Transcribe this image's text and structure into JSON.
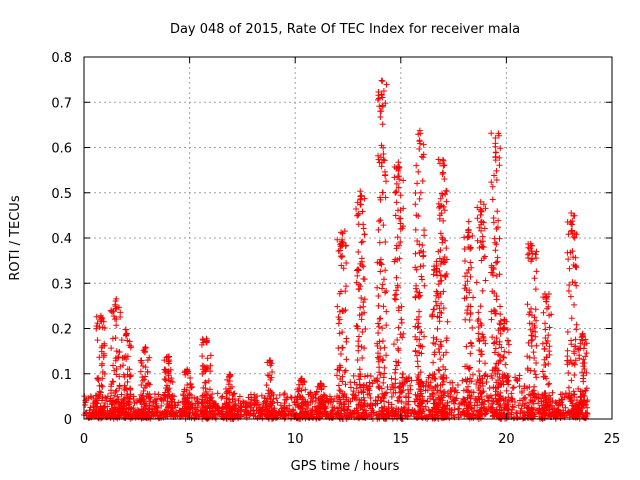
{
  "chart_data": {
    "type": "scatter",
    "title": "Day 048 of 2015, Rate Of TEC Index for receiver mala",
    "xlabel": "GPS time / hours",
    "ylabel": "ROTI / TECUs",
    "xlim": [
      0,
      25
    ],
    "ylim": [
      0,
      0.8
    ],
    "xticks": [
      0,
      5,
      10,
      15,
      20,
      25
    ],
    "yticks": [
      0,
      0.1,
      0.2,
      0.3,
      0.4,
      0.5,
      0.6,
      0.7,
      0.8
    ],
    "xtick_labels": [
      "0",
      "5",
      "10",
      "15",
      "20",
      "25"
    ],
    "ytick_labels": [
      "0",
      "0.1",
      "0.2",
      "0.3",
      "0.4",
      "0.5",
      "0.6",
      "0.7",
      "0.8"
    ],
    "grid": true,
    "marker": "+",
    "color": "#ff0000",
    "series": [
      {
        "name": "ROTI",
        "bursts": [
          {
            "center": 0.8,
            "peak": 0.23
          },
          {
            "center": 1.5,
            "peak": 0.27
          },
          {
            "center": 2.0,
            "peak": 0.2
          },
          {
            "center": 2.9,
            "peak": 0.16
          },
          {
            "center": 4.0,
            "peak": 0.14
          },
          {
            "center": 4.9,
            "peak": 0.11
          },
          {
            "center": 5.8,
            "peak": 0.18
          },
          {
            "center": 6.9,
            "peak": 0.1
          },
          {
            "center": 8.8,
            "peak": 0.13
          },
          {
            "center": 10.3,
            "peak": 0.09
          },
          {
            "center": 11.2,
            "peak": 0.08
          },
          {
            "center": 12.2,
            "peak": 0.42
          },
          {
            "center": 13.1,
            "peak": 0.51
          },
          {
            "center": 14.1,
            "peak": 0.75
          },
          {
            "center": 14.9,
            "peak": 0.58
          },
          {
            "center": 15.9,
            "peak": 0.64
          },
          {
            "center": 16.7,
            "peak": 0.35
          },
          {
            "center": 17.0,
            "peak": 0.6
          },
          {
            "center": 18.2,
            "peak": 0.44
          },
          {
            "center": 18.8,
            "peak": 0.48
          },
          {
            "center": 19.5,
            "peak": 0.64
          },
          {
            "center": 19.9,
            "peak": 0.22
          },
          {
            "center": 21.2,
            "peak": 0.39
          },
          {
            "center": 21.9,
            "peak": 0.28
          },
          {
            "center": 23.1,
            "peak": 0.46
          },
          {
            "center": 23.6,
            "peak": 0.19
          }
        ]
      }
    ]
  }
}
